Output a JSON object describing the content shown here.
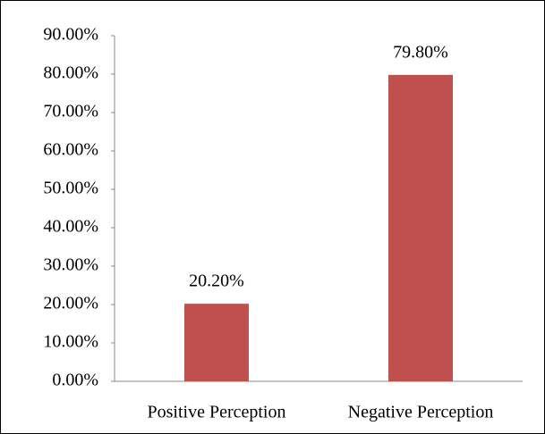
{
  "chart_data": {
    "type": "bar",
    "categories": [
      "Positive Perception",
      "Negative Perception"
    ],
    "values": [
      20.2,
      79.8
    ],
    "value_labels": [
      "20.20%",
      "79.80%"
    ],
    "color": "#c0504d",
    "ylim": [
      0,
      90
    ],
    "yticks": [
      {
        "value": 0,
        "label": "0.00%"
      },
      {
        "value": 10,
        "label": "10.00%"
      },
      {
        "value": 20,
        "label": "20.00%"
      },
      {
        "value": 30,
        "label": "30.00%"
      },
      {
        "value": 40,
        "label": "40.00%"
      },
      {
        "value": 50,
        "label": "50.00%"
      },
      {
        "value": 60,
        "label": "60.00%"
      },
      {
        "value": 70,
        "label": "70.00%"
      },
      {
        "value": 80,
        "label": "80.00%"
      },
      {
        "value": 90,
        "label": "90.00%"
      }
    ],
    "grid": false
  }
}
